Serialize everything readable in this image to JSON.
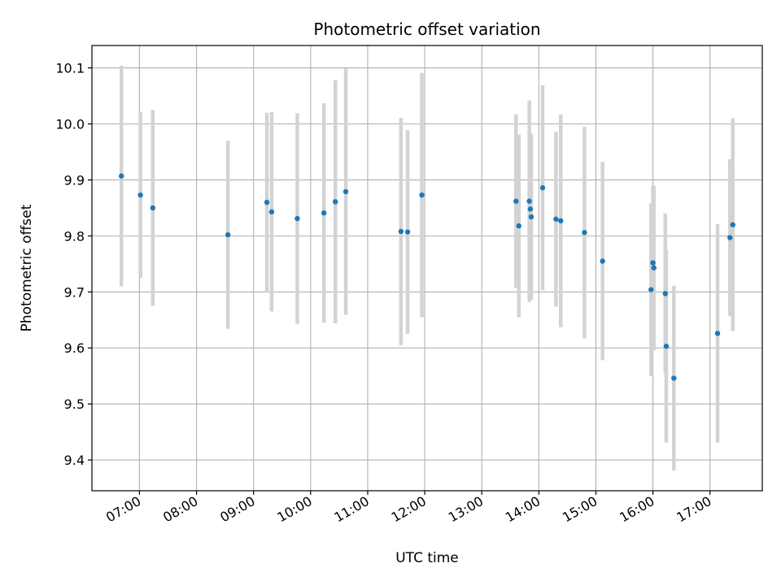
{
  "chart_data": {
    "type": "scatter",
    "title": "Photometric offset variation",
    "xlabel": "UTC time",
    "ylabel": "Photometric offset",
    "x_tick_labels": [
      "07:00",
      "08:00",
      "09:00",
      "10:00",
      "11:00",
      "12:00",
      "13:00",
      "14:00",
      "15:00",
      "16:00",
      "17:00"
    ],
    "x_tick_values": [
      "07:00",
      "08:00",
      "09:00",
      "10:00",
      "11:00",
      "12:00",
      "13:00",
      "14:00",
      "15:00",
      "16:00",
      "17:00"
    ],
    "y_tick_labels": [
      "9.4",
      "9.5",
      "9.6",
      "9.7",
      "9.8",
      "9.9",
      "10.0",
      "10.1"
    ],
    "y_tick_values": [
      9.4,
      9.5,
      9.6,
      9.7,
      9.8,
      9.9,
      10.0,
      10.1
    ],
    "xlim": [
      "06:10",
      "17:55"
    ],
    "ylim": [
      9.345,
      10.14
    ],
    "grid": true,
    "legend": false,
    "point_color": "#1f77b4",
    "errorbar_color": "#d3d3d3",
    "points": [
      {
        "x": "06:41",
        "y": 9.907,
        "err": 0.197
      },
      {
        "x": "07:01",
        "y": 9.873,
        "err": 0.148
      },
      {
        "x": "07:14",
        "y": 9.85,
        "err": 0.175
      },
      {
        "x": "08:33",
        "y": 9.802,
        "err": 0.168
      },
      {
        "x": "09:14",
        "y": 9.86,
        "err": 0.16
      },
      {
        "x": "09:19",
        "y": 9.843,
        "err": 0.178
      },
      {
        "x": "09:46",
        "y": 9.831,
        "err": 0.188
      },
      {
        "x": "10:14",
        "y": 9.841,
        "err": 0.196
      },
      {
        "x": "10:26",
        "y": 9.861,
        "err": 0.217
      },
      {
        "x": "10:37",
        "y": 9.879,
        "err": 0.22
      },
      {
        "x": "11:35",
        "y": 9.808,
        "err": 0.203
      },
      {
        "x": "11:42",
        "y": 9.807,
        "err": 0.182
      },
      {
        "x": "11:57",
        "y": 9.873,
        "err": 0.218
      },
      {
        "x": "13:36",
        "y": 9.862,
        "err": 0.155
      },
      {
        "x": "13:39",
        "y": 9.818,
        "err": 0.163
      },
      {
        "x": "13:50",
        "y": 9.862,
        "err": 0.18
      },
      {
        "x": "13:51",
        "y": 9.848,
        "err": 0.135
      },
      {
        "x": "13:52",
        "y": 9.834,
        "err": 0.148
      },
      {
        "x": "14:04",
        "y": 9.886,
        "err": 0.183
      },
      {
        "x": "14:18",
        "y": 9.83,
        "err": 0.156
      },
      {
        "x": "14:23",
        "y": 9.827,
        "err": 0.19
      },
      {
        "x": "14:48",
        "y": 9.806,
        "err": 0.189
      },
      {
        "x": "15:07",
        "y": 9.755,
        "err": 0.177
      },
      {
        "x": "15:58",
        "y": 9.704,
        "err": 0.154
      },
      {
        "x": "16:00",
        "y": 9.752,
        "err": 0.138
      },
      {
        "x": "16:01",
        "y": 9.743,
        "err": 0.147
      },
      {
        "x": "16:13",
        "y": 9.697,
        "err": 0.143
      },
      {
        "x": "16:14",
        "y": 9.603,
        "err": 0.172
      },
      {
        "x": "16:22",
        "y": 9.546,
        "err": 0.165
      },
      {
        "x": "17:08",
        "y": 9.626,
        "err": 0.195
      },
      {
        "x": "17:21",
        "y": 9.797,
        "err": 0.14
      },
      {
        "x": "17:24",
        "y": 9.82,
        "err": 0.19
      }
    ]
  }
}
